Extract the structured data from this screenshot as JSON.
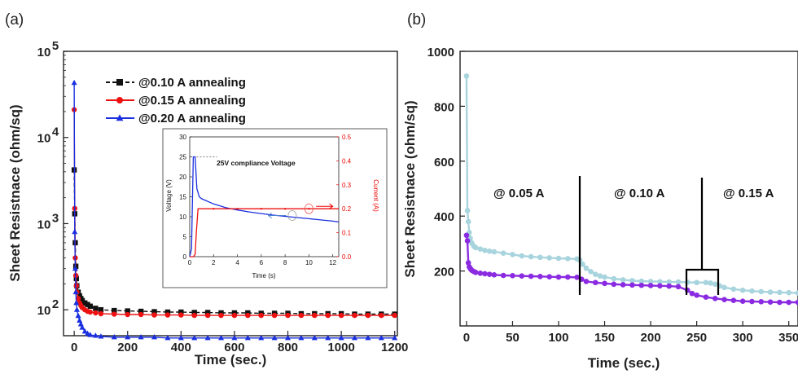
{
  "chart_data": [
    {
      "id": "a",
      "type": "line",
      "panel_label": "(a)",
      "xlabel": "Time (sec.)",
      "ylabel": "Sheet Resistnace (ohm/sq)",
      "xlim": [
        -40,
        1210
      ],
      "ylim": [
        50,
        100000
      ],
      "yscale": "log",
      "xticks": [
        "0",
        "200",
        "400",
        "600",
        "800",
        "1000",
        "1200"
      ],
      "yticks": [
        {
          "base": "10",
          "exp": "2",
          "value": 100
        },
        {
          "base": "10",
          "exp": "3",
          "value": 1000
        },
        {
          "base": "10",
          "exp": "4",
          "value": 10000
        },
        {
          "base": "10",
          "exp": "5",
          "value": 100000
        }
      ],
      "legend_position": "top-left",
      "series": [
        {
          "name": "@0.10 A annealing",
          "color": "#111111",
          "marker": "square",
          "x": [
            0,
            2,
            4,
            6,
            8,
            10,
            15,
            20,
            25,
            30,
            40,
            50,
            60,
            80,
            100,
            150,
            200,
            250,
            300,
            350,
            400,
            450,
            500,
            550,
            600,
            650,
            700,
            750,
            800,
            850,
            900,
            950,
            1000,
            1050,
            1100,
            1150,
            1200
          ],
          "y": [
            4200,
            1300,
            600,
            320,
            230,
            190,
            160,
            145,
            135,
            128,
            120,
            115,
            110,
            104,
            100,
            98,
            97,
            96,
            95,
            94,
            94,
            93,
            93,
            92,
            92,
            92,
            91,
            91,
            91,
            90,
            90,
            90,
            90,
            89,
            89,
            89,
            89
          ]
        },
        {
          "name": "@0.15 A annealing",
          "color": "#ee1111",
          "marker": "circle",
          "x": [
            0,
            2,
            4,
            6,
            8,
            10,
            15,
            20,
            25,
            30,
            40,
            50,
            60,
            80,
            100,
            150,
            200,
            250,
            300,
            350,
            400,
            450,
            500,
            550,
            600,
            650,
            700,
            750,
            800,
            850,
            900,
            950,
            1000,
            1050,
            1100,
            1150,
            1200
          ],
          "y": [
            21000,
            1500,
            400,
            250,
            190,
            160,
            135,
            120,
            112,
            106,
            100,
            96,
            94,
            92,
            90,
            89,
            88,
            88,
            87,
            87,
            87,
            86,
            86,
            86,
            86,
            86,
            86,
            86,
            86,
            86,
            86,
            86,
            86,
            86,
            86,
            86,
            86
          ]
        },
        {
          "name": "@0.20 A annealing",
          "color": "#1a2fe0",
          "marker": "triangle",
          "x": [
            0,
            2,
            4,
            6,
            8,
            10,
            15,
            20,
            25,
            30,
            40,
            50,
            60,
            80,
            100,
            150,
            200,
            250,
            300,
            350,
            400,
            450,
            500,
            550,
            600,
            650,
            700,
            750,
            800,
            850,
            900,
            950,
            1000,
            1050,
            1100,
            1150,
            1200
          ],
          "y": [
            43000,
            800,
            300,
            160,
            120,
            100,
            85,
            75,
            68,
            62,
            56,
            53,
            51,
            50,
            49,
            48,
            48,
            48,
            48,
            47,
            47,
            47,
            47,
            47,
            47,
            47,
            47,
            47,
            47,
            47,
            47,
            47,
            47,
            47,
            47,
            47,
            47
          ]
        }
      ],
      "inset": {
        "xlabel": "Time (s)",
        "ylabel_left": "Voltage (V)",
        "ylabel_right": "Current (A)",
        "xlim": [
          0,
          12.5
        ],
        "ylim_left": [
          0,
          30
        ],
        "ylim_right": [
          0,
          0.5
        ],
        "xticks": [
          "0",
          "2",
          "4",
          "6",
          "8",
          "10",
          "12"
        ],
        "yticks_left": [
          "0",
          "5",
          "10",
          "15",
          "20",
          "25",
          "30"
        ],
        "yticks_right": [
          "0.0",
          "0.1",
          "0.2",
          "0.3",
          "0.4",
          "0.5"
        ],
        "annotation": "25V compliance Voltage",
        "voltage": {
          "x": [
            0,
            0.15,
            0.3,
            0.45,
            0.6,
            0.8,
            1,
            2,
            3,
            4,
            5,
            6,
            7,
            8,
            9,
            10,
            11,
            12,
            12.5
          ],
          "y": [
            0,
            2,
            25,
            25,
            17,
            15,
            14.5,
            13.2,
            12.3,
            11.7,
            11.2,
            10.8,
            10.4,
            10.1,
            9.8,
            9.5,
            9.2,
            8.9,
            8.7
          ]
        },
        "current": {
          "x": [
            0,
            0.3,
            0.45,
            0.55,
            0.7,
            1,
            2,
            4,
            6,
            8,
            10,
            12,
            12.5
          ],
          "y": [
            0,
            0,
            0.01,
            0.1,
            0.2,
            0.2,
            0.2,
            0.2,
            0.2,
            0.2,
            0.2,
            0.2,
            0.2
          ]
        }
      }
    },
    {
      "id": "b",
      "type": "line",
      "panel_label": "(b)",
      "xlabel": "Time (sec.)",
      "ylabel": "Sheet Resistnace (ohm/sq)",
      "xlim": [
        -7,
        360
      ],
      "ylim": [
        0,
        1000
      ],
      "xticks": [
        "0",
        "50",
        "100",
        "150",
        "200",
        "250",
        "300",
        "350"
      ],
      "yticks": [
        "200",
        "400",
        "600",
        "800",
        "1000"
      ],
      "annotations": [
        "@ 0.05 A",
        "@ 0.10 A",
        "@ 0.15 A"
      ],
      "series": [
        {
          "name": "",
          "color": "#a8d4de",
          "x": [
            0,
            1,
            2,
            3,
            4,
            5,
            6,
            8,
            10,
            15,
            20,
            25,
            30,
            40,
            50,
            60,
            70,
            80,
            90,
            100,
            110,
            120,
            123,
            126,
            130,
            135,
            140,
            145,
            150,
            160,
            170,
            180,
            190,
            200,
            210,
            220,
            230,
            240,
            250,
            260,
            265,
            270,
            275,
            280,
            290,
            300,
            310,
            320,
            330,
            340,
            350,
            360
          ],
          "y": [
            910,
            420,
            380,
            340,
            320,
            305,
            300,
            290,
            285,
            280,
            275,
            272,
            270,
            265,
            260,
            255,
            252,
            250,
            248,
            246,
            245,
            244,
            240,
            225,
            210,
            198,
            188,
            182,
            178,
            172,
            168,
            165,
            163,
            162,
            161,
            160,
            160,
            159,
            158,
            158,
            156,
            152,
            146,
            140,
            134,
            130,
            127,
            125,
            123,
            122,
            121,
            120
          ]
        },
        {
          "name": "",
          "color": "#8a2be2",
          "x": [
            0,
            1,
            2,
            3,
            4,
            5,
            6,
            8,
            10,
            15,
            20,
            25,
            30,
            40,
            50,
            60,
            70,
            80,
            90,
            100,
            110,
            120,
            125,
            130,
            140,
            150,
            160,
            170,
            180,
            190,
            200,
            210,
            220,
            230,
            240,
            245,
            250,
            260,
            270,
            280,
            290,
            300,
            310,
            320,
            330,
            340,
            350,
            360
          ],
          "y": [
            330,
            310,
            230,
            215,
            210,
            205,
            202,
            198,
            195,
            192,
            190,
            188,
            186,
            184,
            183,
            182,
            181,
            180,
            179,
            178,
            178,
            177,
            170,
            162,
            158,
            155,
            152,
            150,
            149,
            148,
            147,
            146,
            145,
            143,
            130,
            118,
            112,
            105,
            100,
            96,
            93,
            90,
            89,
            88,
            87,
            86,
            86,
            86
          ]
        }
      ]
    }
  ]
}
